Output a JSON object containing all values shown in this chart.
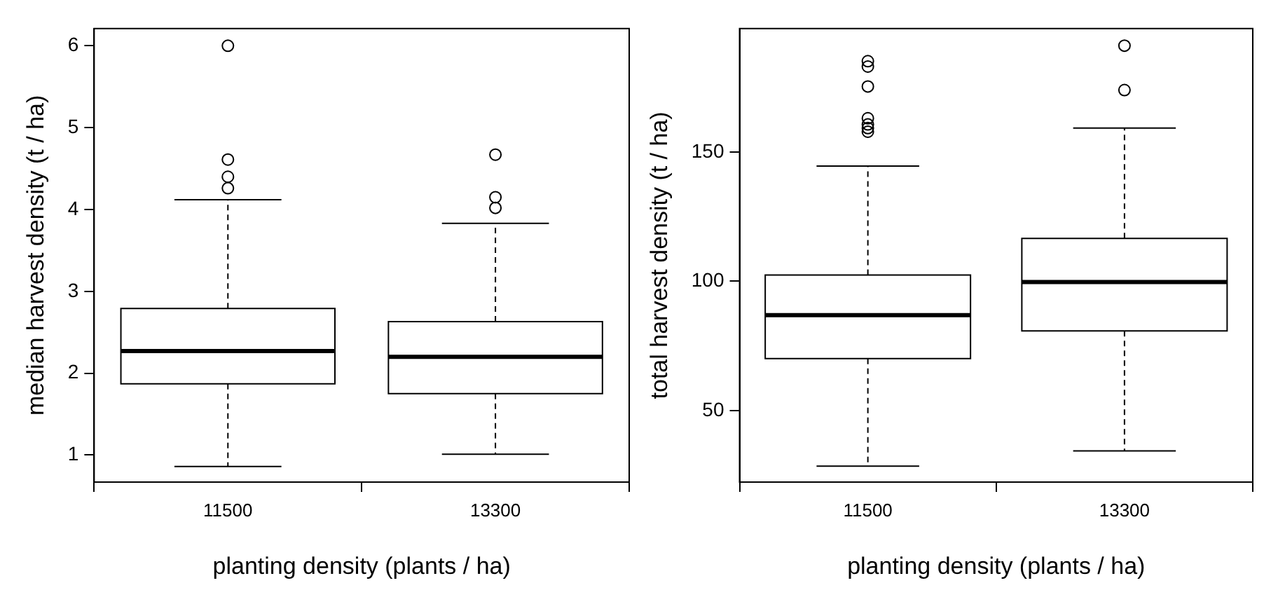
{
  "chart_data": [
    {
      "type": "box",
      "categories": [
        "11500",
        "13300"
      ],
      "xlabel": "planting density (plants / ha)",
      "ylabel": "median harvest density (t / ha)",
      "ylim": [
        0.67,
        6.21
      ],
      "yticks": [
        1,
        2,
        3,
        4,
        5,
        6
      ],
      "boxes": [
        {
          "low": 0.86,
          "q1": 1.87,
          "median": 2.27,
          "q3": 2.79,
          "high": 4.12,
          "outliers": [
            4.26,
            4.4,
            4.61,
            6.0
          ]
        },
        {
          "low": 1.01,
          "q1": 1.75,
          "median": 2.2,
          "q3": 2.63,
          "high": 3.83,
          "outliers": [
            4.02,
            4.15,
            4.67
          ]
        }
      ]
    },
    {
      "type": "box",
      "categories": [
        "11500",
        "13300"
      ],
      "xlabel": "planting density (plants / ha)",
      "ylabel": "total harvest density (t / ha)",
      "ylim": [
        22.3,
        197.8
      ],
      "yticks": [
        50,
        100,
        150
      ],
      "boxes": [
        {
          "low": 28.5,
          "q1": 70.1,
          "median": 86.9,
          "q3": 102.4,
          "high": 144.6,
          "outliers": [
            157.9,
            159.3,
            160.7,
            163.1,
            175.4,
            183.1,
            185.2
          ]
        },
        {
          "low": 34.4,
          "q1": 80.8,
          "median": 99.7,
          "q3": 116.6,
          "high": 159.3,
          "outliers": [
            174.0,
            191.2
          ]
        }
      ]
    }
  ]
}
